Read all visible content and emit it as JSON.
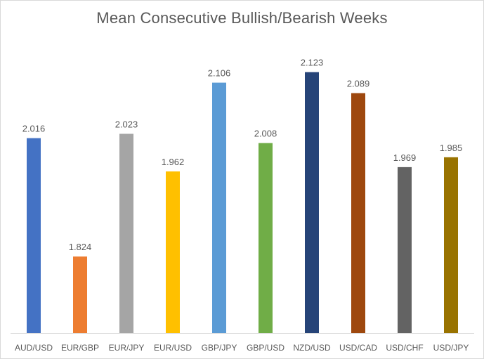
{
  "chart_data": {
    "type": "bar",
    "title": "Mean Consecutive Bullish/Bearish Weeks",
    "xlabel": "",
    "ylabel": "",
    "ylim": [
      1.7,
      2.15
    ],
    "grid": false,
    "legend": "none",
    "categories": [
      "AUD/USD",
      "EUR/GBP",
      "EUR/JPY",
      "EUR/USD",
      "GBP/JPY",
      "GBP/USD",
      "NZD/USD",
      "USD/CAD",
      "USD/CHF",
      "USD/JPY"
    ],
    "values": [
      2.016,
      1.824,
      2.023,
      1.962,
      2.106,
      2.008,
      2.123,
      2.089,
      1.969,
      1.985
    ],
    "value_labels": [
      "2.016",
      "1.824",
      "2.023",
      "1.962",
      "2.106",
      "2.008",
      "2.123",
      "2.089",
      "1.969",
      "1.985"
    ],
    "colors": [
      "#4472C4",
      "#ED7D31",
      "#A5A5A5",
      "#FFC000",
      "#5B9BD5",
      "#70AD47",
      "#264478",
      "#9E480E",
      "#636363",
      "#997300"
    ]
  }
}
